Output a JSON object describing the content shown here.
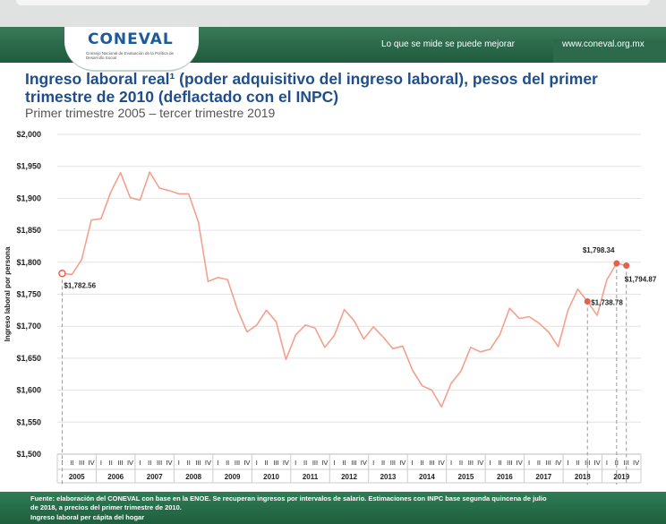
{
  "header": {
    "logo": "CONEVAL",
    "logo_subtitle": "Consejo Nacional de Evaluación de la Política de Desarrollo Social",
    "tagline": "Lo que se mide se puede mejorar",
    "website": "www.coneval.org.mx"
  },
  "title": "Ingreso laboral real¹ (poder adquisitivo del ingreso laboral), pesos del primer trimestre de 2010 (deflactado con el INPC)",
  "subtitle": "Primer trimestre 2005 – tercer trimestre 2019",
  "footer": {
    "line1": "Fuente: elaboración del CONEVAL con base en la ENOE. Se recuperan ingresos por intervalos de salario. Estimaciones con INPC base segunda quincena de julio",
    "line2": "de 2018, a precios del primer trimestre de 2010.",
    "line3": "Ingreso laboral per cápita del hogar"
  },
  "colors": {
    "line": "#f4a08c",
    "marker": "#e8604a",
    "title": "#1f4e8c",
    "header_green": "#1f5a3d"
  },
  "chart_data": {
    "type": "line",
    "title": "Ingreso laboral real¹ (poder adquisitivo del ingreso laboral), pesos del primer trimestre de 2010 (deflactado con el INPC)",
    "subtitle": "Primer trimestre 2005 – tercer trimestre 2019",
    "ylabel": "Ingreso laboral por persona",
    "ylim": [
      1500,
      2000
    ],
    "yticks": [
      "$1,500",
      "$1,550",
      "$1,600",
      "$1,650",
      "$1,700",
      "$1,750",
      "$1,800",
      "$1,850",
      "$1,900",
      "$1,950",
      "$2,000"
    ],
    "quarter_labels": [
      "I",
      "II",
      "III",
      "IV"
    ],
    "years": [
      "2005",
      "2006",
      "2007",
      "2008",
      "2009",
      "2010",
      "2011",
      "2012",
      "2013",
      "2014",
      "2015",
      "2016",
      "2017",
      "2018",
      "2019"
    ],
    "grid": true,
    "values": [
      1782.56,
      1781,
      1804,
      1866,
      1868,
      1910,
      1940,
      1901,
      1897,
      1941,
      1916,
      1912,
      1907,
      1907,
      1863,
      1770,
      1776,
      1773,
      1727,
      1691,
      1702,
      1725,
      1707,
      1648,
      1686,
      1702,
      1697,
      1667,
      1686,
      1726,
      1709,
      1680,
      1699,
      1683,
      1665,
      1669,
      1632,
      1607,
      1600,
      1574,
      1611,
      1630,
      1667,
      1660,
      1664,
      1687,
      1728,
      1712,
      1715,
      1705,
      1691,
      1668,
      1725,
      1758,
      1738.78,
      1717,
      1773,
      1798.34,
      1794.87
    ],
    "annotations": [
      {
        "index": 0,
        "label": "$1,782.56",
        "style": "hollow"
      },
      {
        "index": 54,
        "label": "$1,738.78",
        "style": "filled"
      },
      {
        "index": 57,
        "label": "$1,798.34",
        "style": "filled"
      },
      {
        "index": 58,
        "label": "$1,794.87",
        "style": "filled"
      }
    ]
  }
}
